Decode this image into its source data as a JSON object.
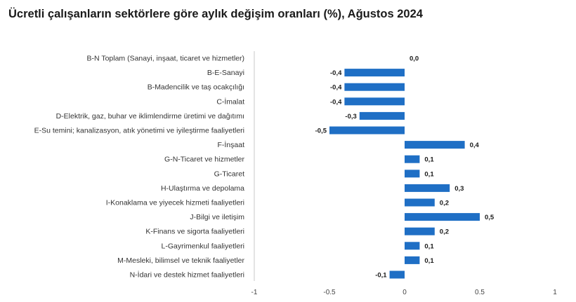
{
  "chart_data": {
    "type": "bar",
    "orientation": "horizontal",
    "title": "Ücretli çalışanların sektörlere göre aylık değişim oranları (%), Ağustos 2024",
    "categories": [
      "B-N Toplam (Sanayi, inşaat, ticaret ve hizmetler)",
      "B-E-Sanayi",
      "B-Madencilik ve taş ocakçılığı",
      "C-İmalat",
      "D-Elektrik, gaz, buhar ve iklimlendirme üretimi ve dağıtımı",
      "E-Su temini; kanalizasyon, atık yönetimi ve iyileştirme faaliyetleri",
      "F-İnşaat",
      "G-N-Ticaret ve hizmetler",
      "G-Ticaret",
      "H-Ulaştırma ve depolama",
      "I-Konaklama ve yiyecek hizmeti faaliyetleri",
      "J-Bilgi ve iletişim",
      "K-Finans ve sigorta faaliyetleri",
      "L-Gayrimenkul faaliyetleri",
      "M-Mesleki, bilimsel ve teknik faaliyetler",
      "N-İdari ve destek hizmet faaliyetleri"
    ],
    "values": [
      0.0,
      -0.4,
      -0.4,
      -0.4,
      -0.3,
      -0.5,
      0.4,
      0.1,
      0.1,
      0.3,
      0.2,
      0.5,
      0.2,
      0.1,
      0.1,
      -0.1
    ],
    "value_labels": [
      "0,0",
      "-0,4",
      "-0,4",
      "-0,4",
      "-0,3",
      "-0,5",
      "0,4",
      "0,1",
      "0,1",
      "0,3",
      "0,2",
      "0,5",
      "0,2",
      "0,1",
      "0,1",
      "-0,1"
    ],
    "xlim": [
      -1,
      1
    ],
    "xticks": [
      -1,
      -0.5,
      0,
      0.5,
      1
    ],
    "xtick_labels": [
      "-1",
      "-0.5",
      "0",
      "0.5",
      "1"
    ],
    "grid": false,
    "bar_color": "#1f6fc5",
    "axis_color": "#c8c8c8"
  }
}
